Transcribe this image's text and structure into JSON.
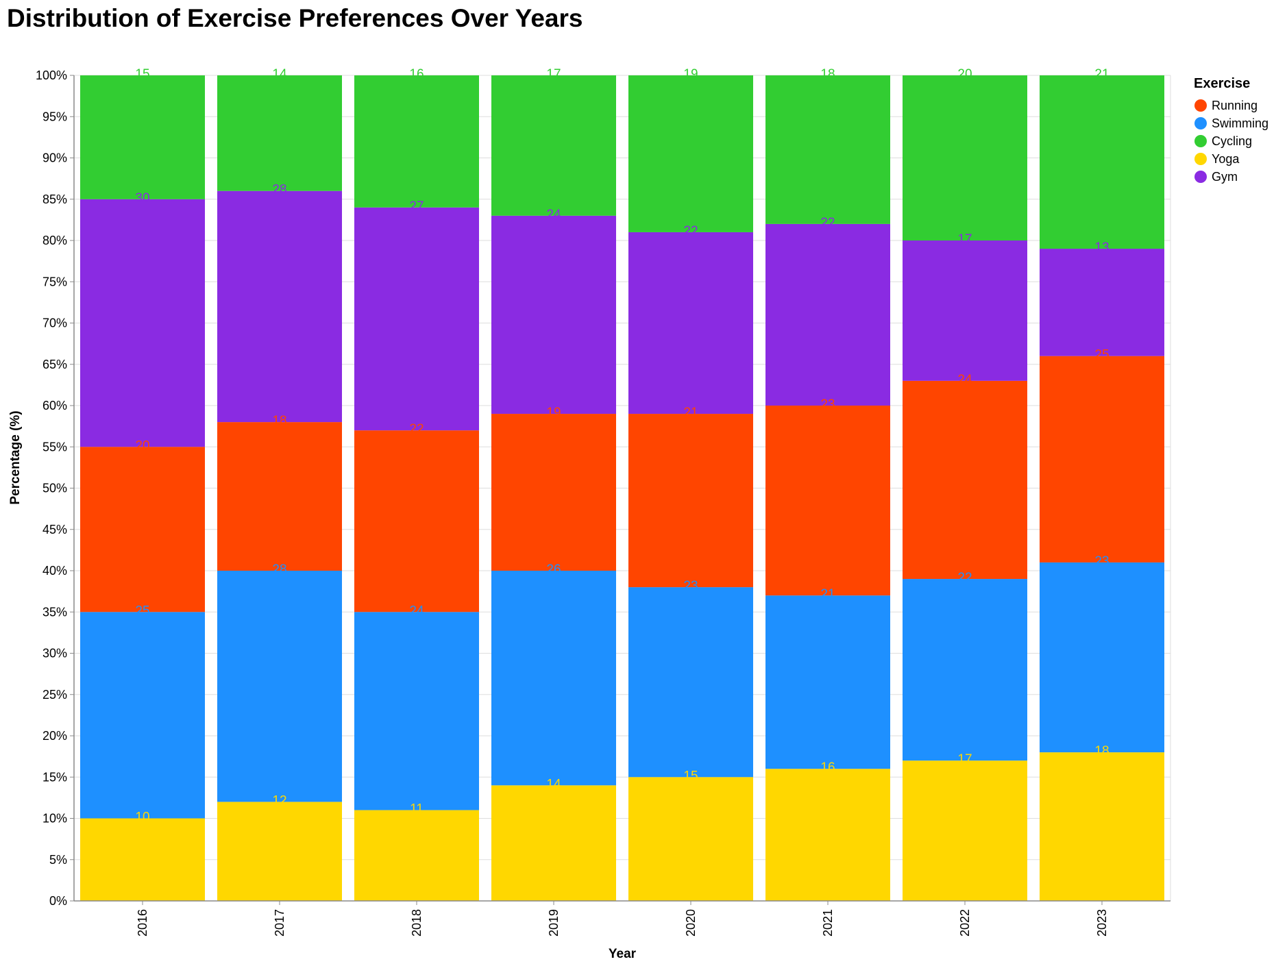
{
  "chart_data": {
    "type": "bar",
    "stacked": true,
    "normalized": true,
    "title": "Distribution of Exercise Preferences Over Years",
    "xlabel": "Year",
    "ylabel": "Percentage (%)",
    "ylim": [
      0,
      100
    ],
    "y_ticks": [
      "0%",
      "5%",
      "10%",
      "15%",
      "20%",
      "25%",
      "30%",
      "35%",
      "40%",
      "45%",
      "50%",
      "55%",
      "60%",
      "65%",
      "70%",
      "75%",
      "80%",
      "85%",
      "90%",
      "95%",
      "100%"
    ],
    "categories": [
      "2016",
      "2017",
      "2018",
      "2019",
      "2020",
      "2021",
      "2022",
      "2023"
    ],
    "stack_order": [
      "Yoga",
      "Swimming",
      "Running",
      "Gym",
      "Cycling"
    ],
    "series": [
      {
        "name": "Running",
        "color": "#ff4500",
        "values": [
          20,
          18,
          22,
          19,
          21,
          23,
          24,
          25
        ]
      },
      {
        "name": "Swimming",
        "color": "#1e90ff",
        "values": [
          25,
          28,
          24,
          26,
          23,
          21,
          22,
          23
        ]
      },
      {
        "name": "Cycling",
        "color": "#32cd32",
        "values": [
          15,
          14,
          16,
          17,
          19,
          18,
          20,
          21
        ]
      },
      {
        "name": "Yoga",
        "color": "#ffd700",
        "values": [
          10,
          12,
          11,
          14,
          15,
          16,
          17,
          18
        ]
      },
      {
        "name": "Gym",
        "color": "#8a2be2",
        "values": [
          30,
          28,
          27,
          24,
          22,
          22,
          17,
          13
        ]
      }
    ],
    "legend": {
      "title": "Exercise",
      "position": "top-right"
    },
    "grid": true
  }
}
